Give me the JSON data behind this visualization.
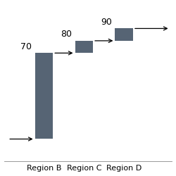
{
  "regions": [
    "Region B",
    "Region C",
    "Region D"
  ],
  "bar_tops": [
    70,
    80,
    90
  ],
  "bar_bases": [
    0,
    70,
    80
  ],
  "bar_color": "#566474",
  "bar_width": 0.45,
  "bar_positions": [
    1,
    2,
    3
  ],
  "annotations": [
    "70",
    "80",
    "90"
  ],
  "figsize": [
    2.5,
    2.5
  ],
  "dpi": 100,
  "xlim": [
    0.0,
    4.2
  ],
  "ylim": [
    -18,
    110
  ],
  "arrow_color": "black",
  "font_size": 9,
  "label_font_size": 8,
  "bg_color": "#ffffff"
}
